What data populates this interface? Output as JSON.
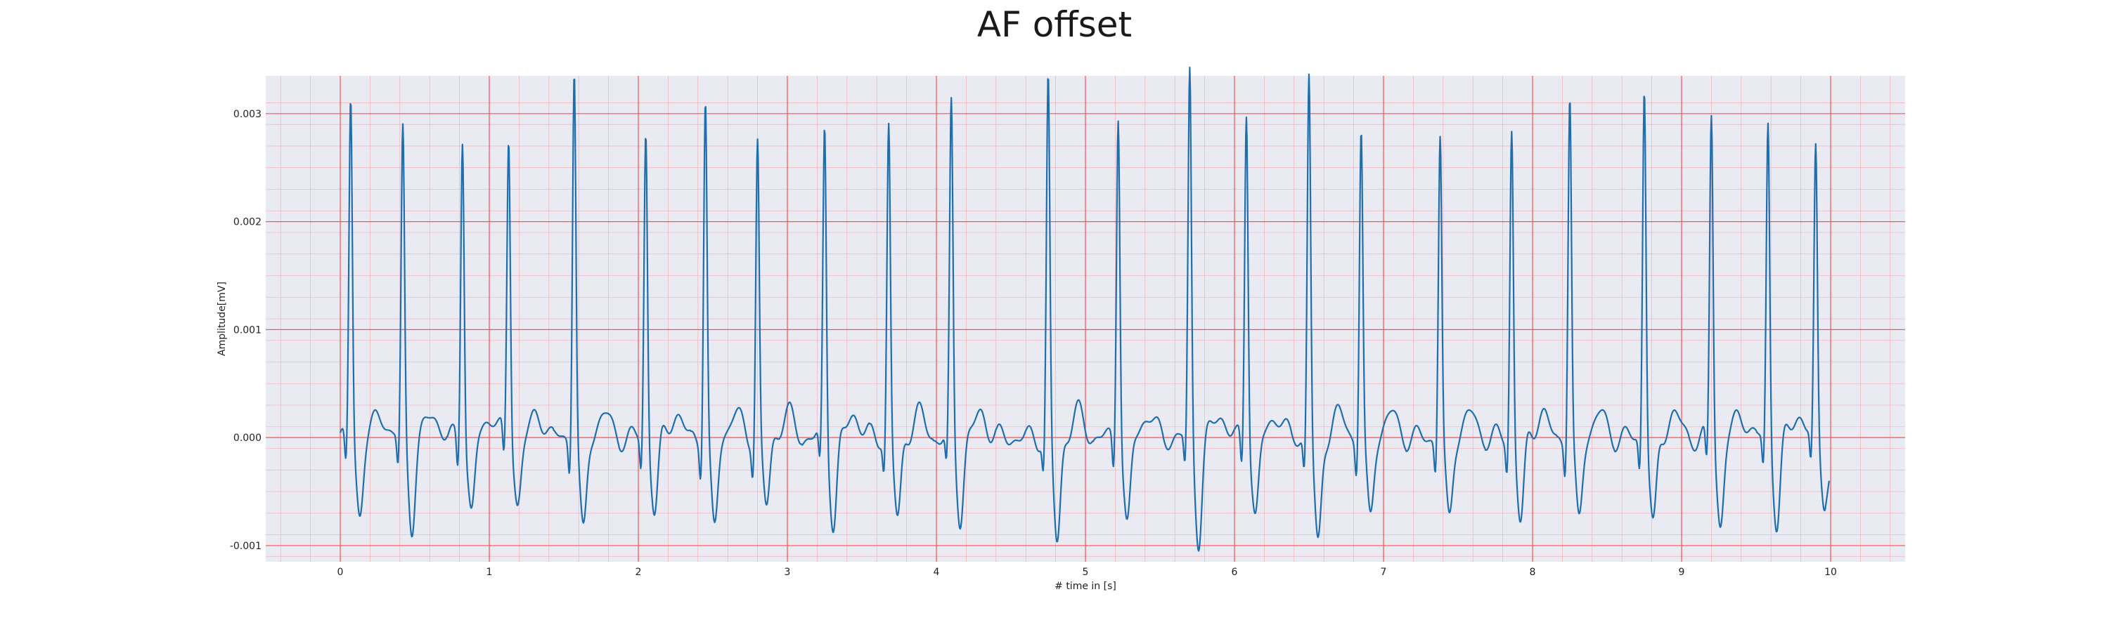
{
  "chart_data": {
    "type": "line",
    "title": "AF offset",
    "xlabel": "# time in [s]",
    "ylabel": "Amplitude[mV]",
    "xlim": [
      -0.5,
      10.5
    ],
    "ylim": [
      -0.00115,
      0.00335
    ],
    "x_ticks": [
      0,
      1,
      2,
      3,
      4,
      5,
      6,
      7,
      8,
      9,
      10
    ],
    "x_tick_labels": [
      "0",
      "1",
      "2",
      "3",
      "4",
      "5",
      "6",
      "7",
      "8",
      "9",
      "10"
    ],
    "y_ticks": [
      -0.001,
      0.0,
      0.001,
      0.002,
      0.003
    ],
    "y_tick_labels": [
      "-0.001",
      "0.000",
      "0.001",
      "0.002",
      "0.003"
    ],
    "grid": true,
    "series": [
      {
        "color": "#1f6fae",
        "r_peaks": [
          {
            "t": 0.07,
            "amp": 0.00285
          },
          {
            "t": 0.42,
            "amp": 0.00255
          },
          {
            "t": 0.82,
            "amp": 0.00255
          },
          {
            "t": 1.13,
            "amp": 0.00247
          },
          {
            "t": 1.57,
            "amp": 0.00317
          },
          {
            "t": 2.05,
            "amp": 0.00255
          },
          {
            "t": 2.45,
            "amp": 0.00286
          },
          {
            "t": 2.8,
            "amp": 0.00245
          },
          {
            "t": 3.25,
            "amp": 0.00258
          },
          {
            "t": 3.68,
            "amp": 0.00261
          },
          {
            "t": 4.1,
            "amp": 0.00276
          },
          {
            "t": 4.75,
            "amp": 0.00302
          },
          {
            "t": 5.22,
            "amp": 0.00278
          },
          {
            "t": 5.7,
            "amp": 0.0031
          },
          {
            "t": 6.08,
            "amp": 0.0028
          },
          {
            "t": 6.5,
            "amp": 0.0031
          },
          {
            "t": 6.85,
            "amp": 0.00257
          },
          {
            "t": 7.38,
            "amp": 0.00252
          },
          {
            "t": 7.86,
            "amp": 0.00258
          },
          {
            "t": 8.25,
            "amp": 0.00288
          },
          {
            "t": 8.75,
            "amp": 0.003
          },
          {
            "t": 9.2,
            "amp": 0.00272
          },
          {
            "t": 9.58,
            "amp": 0.00263
          },
          {
            "t": 9.9,
            "amp": 0.00235
          }
        ],
        "s_troughs": [
          -0.00063,
          -0.00075,
          -0.00065,
          -0.00055,
          -0.00086,
          -0.00063,
          -0.0008,
          -0.0006,
          -0.00075,
          -0.00073,
          -0.00068,
          -0.00093,
          -0.0008,
          -0.00088,
          -0.0007,
          -0.00097,
          -0.0007,
          -0.00072,
          -0.00075,
          -0.00072,
          -0.0008,
          -0.00075,
          -0.00075,
          -0.0005
        ],
        "end_value": -0.0004
      }
    ]
  }
}
